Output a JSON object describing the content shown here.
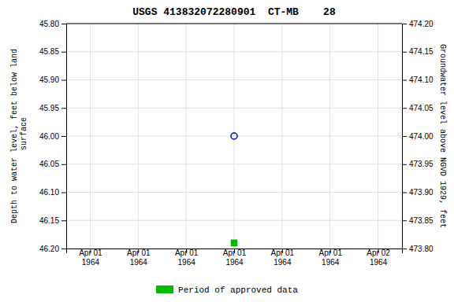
{
  "chart_data": {
    "type": "scatter",
    "title": "USGS 413832072280901  CT-MB    28",
    "y_label": "Depth to water level, feet below land\n surface",
    "y2_label": "Groundwater level above NGVD 1929, feet",
    "categories": [
      "Apr 01\n1964",
      "Apr 01\n1964",
      "Apr 01\n1964",
      "Apr 01\n1964",
      "Apr 01\n1964",
      "Apr 01\n1964",
      "Apr 02\n1964"
    ],
    "series": [
      {
        "values": [
          null,
          null,
          null,
          46.0,
          null,
          null,
          null
        ],
        "color": "#0000cc",
        "marker": "open-circle"
      },
      {
        "name": "Period of approved data",
        "values": [
          null,
          null,
          null,
          46.19,
          null,
          null,
          null
        ],
        "color": "#00bb00",
        "marker": "square"
      }
    ],
    "ylim": [
      46.2,
      45.8
    ],
    "yticks": [
      {
        "value": 45.8,
        "label": "45.80"
      },
      {
        "value": 45.85,
        "label": "45.85"
      },
      {
        "value": 45.9,
        "label": "45.90"
      },
      {
        "value": 45.95,
        "label": "45.95"
      },
      {
        "value": 46.0,
        "label": "46.00"
      },
      {
        "value": 46.05,
        "label": "46.05"
      },
      {
        "value": 46.1,
        "label": "46.10"
      },
      {
        "value": 46.15,
        "label": "46.15"
      },
      {
        "value": 46.2,
        "label": "46.20"
      }
    ],
    "y2lim": [
      473.8,
      474.2
    ],
    "y2ticks": [
      {
        "value": 473.8,
        "label": "473.80"
      },
      {
        "value": 473.85,
        "label": "473.85"
      },
      {
        "value": 473.9,
        "label": "473.90"
      },
      {
        "value": 473.95,
        "label": "473.95"
      },
      {
        "value": 474.0,
        "label": "474.00"
      },
      {
        "value": 474.05,
        "label": "474.05"
      },
      {
        "value": 474.1,
        "label": "474.10"
      },
      {
        "value": 474.15,
        "label": "474.15"
      },
      {
        "value": 474.2,
        "label": "474.20"
      }
    ],
    "grid": true,
    "legend": "bottom"
  }
}
